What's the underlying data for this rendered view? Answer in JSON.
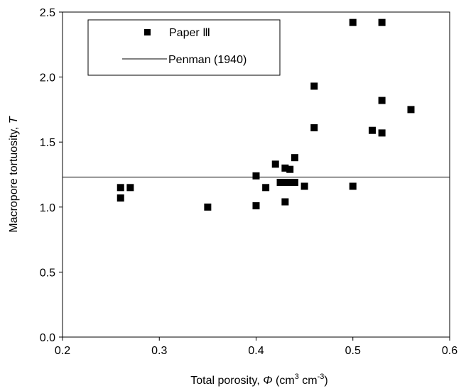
{
  "chart_data": {
    "type": "scatter",
    "xlabel_prefix": "Total porosity, ",
    "xlabel_symbol": "Φ",
    "xlabel_unit_open": " (cm",
    "xlabel_sup1": "3",
    "xlabel_unit_mid": " cm",
    "xlabel_sup2": "-3",
    "xlabel_unit_close": ")",
    "ylabel_prefix": "Macropore tortuosity, ",
    "ylabel_symbol": "T",
    "xlim": [
      0.2,
      0.6
    ],
    "ylim": [
      0.0,
      2.5
    ],
    "x_ticks": [
      0.2,
      0.3,
      0.4,
      0.5,
      0.6
    ],
    "x_tick_labels": [
      "0.2",
      "0.3",
      "0.4",
      "0.5",
      "0.6"
    ],
    "y_ticks": [
      0.0,
      0.5,
      1.0,
      1.5,
      2.0,
      2.5
    ],
    "y_tick_labels": [
      "0.0",
      "0.5",
      "1.0",
      "1.5",
      "2.0",
      "2.5"
    ],
    "grid": false,
    "legend_position": "top-left",
    "series": [
      {
        "name": "Paper Ⅲ",
        "marker": "square",
        "color": "#000000",
        "points": [
          [
            0.26,
            1.15
          ],
          [
            0.26,
            1.07
          ],
          [
            0.27,
            1.15
          ],
          [
            0.35,
            1.0
          ],
          [
            0.4,
            1.24
          ],
          [
            0.4,
            1.01
          ],
          [
            0.41,
            1.15
          ],
          [
            0.42,
            1.33
          ],
          [
            0.425,
            1.19
          ],
          [
            0.43,
            1.3
          ],
          [
            0.43,
            1.19
          ],
          [
            0.43,
            1.04
          ],
          [
            0.435,
            1.29
          ],
          [
            0.435,
            1.19
          ],
          [
            0.44,
            1.38
          ],
          [
            0.44,
            1.19
          ],
          [
            0.45,
            1.16
          ],
          [
            0.46,
            1.93
          ],
          [
            0.46,
            1.61
          ],
          [
            0.5,
            2.42
          ],
          [
            0.5,
            1.16
          ],
          [
            0.52,
            1.59
          ],
          [
            0.53,
            2.42
          ],
          [
            0.53,
            1.82
          ],
          [
            0.53,
            1.57
          ],
          [
            0.56,
            1.75
          ]
        ]
      },
      {
        "name": "Penman (1940)",
        "marker": "line",
        "color": "#000000",
        "y_constant": 1.23
      }
    ]
  }
}
